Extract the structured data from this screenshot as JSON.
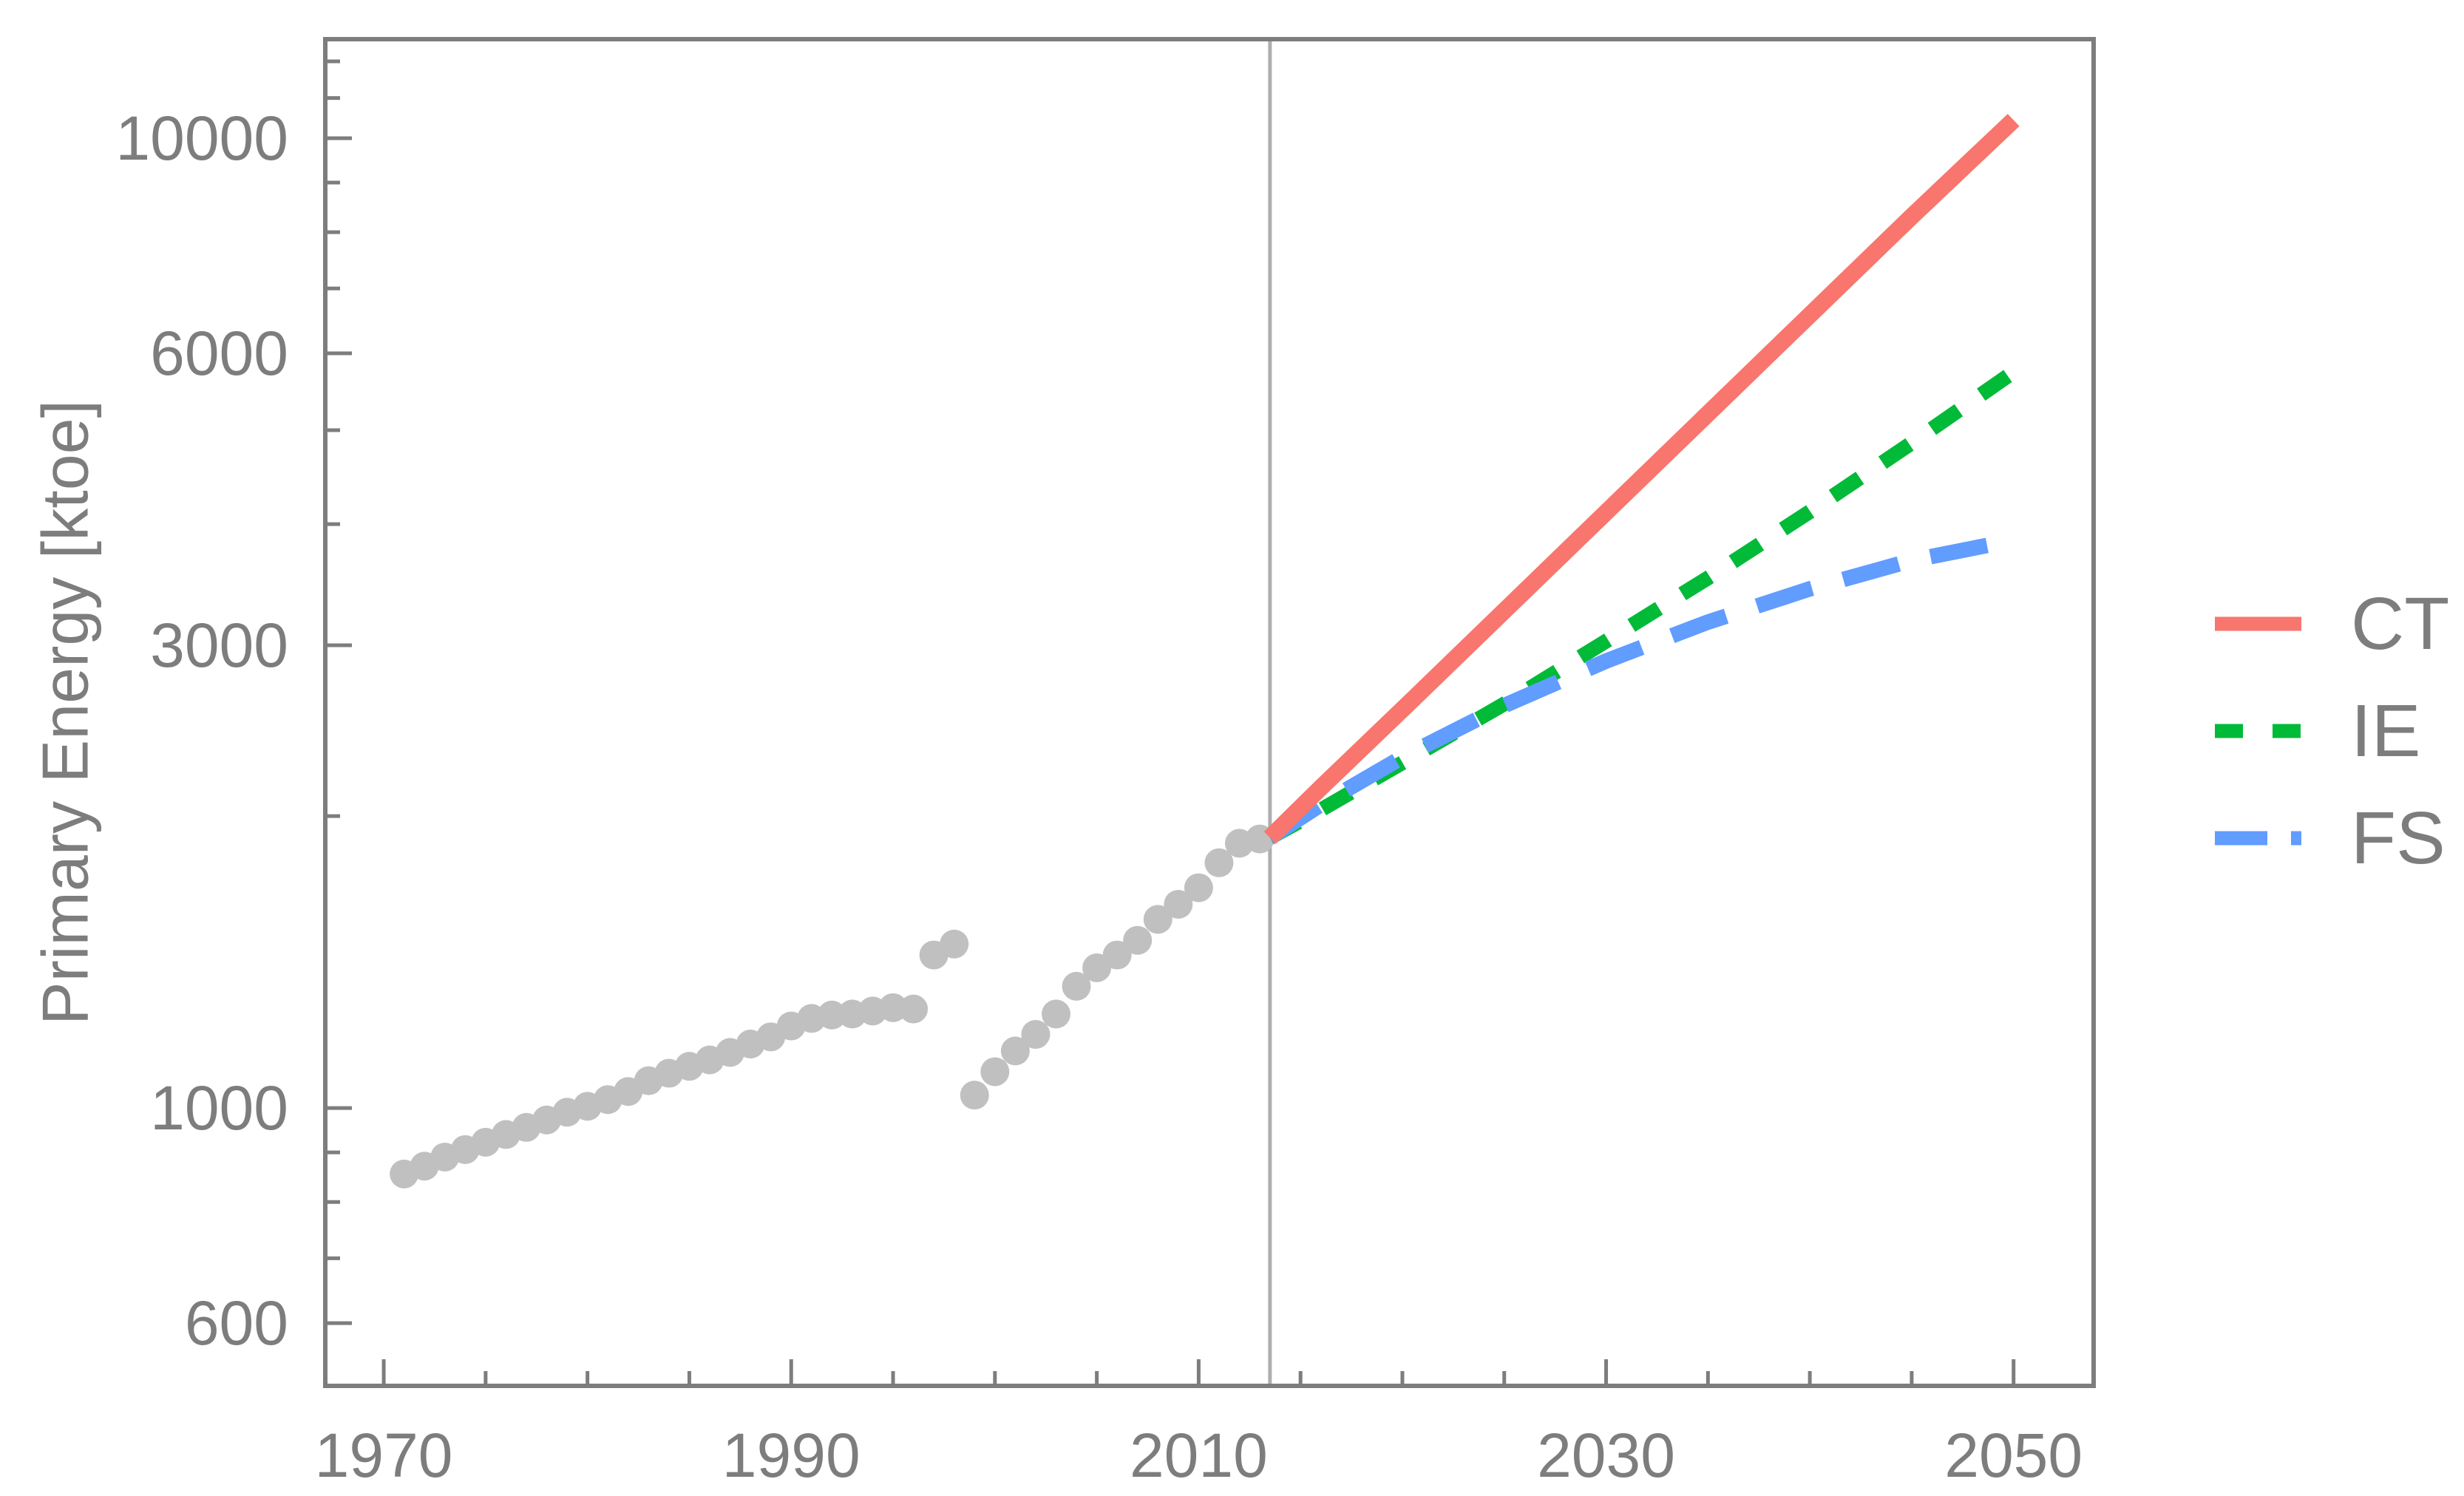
{
  "figure": {
    "background": "#ffffff",
    "frame_color": "#7d7d7d",
    "text_color": "#7d7d7d",
    "divider_color": "#aeaeae",
    "historical_color": "#c0c0c0"
  },
  "chart_data": {
    "type": "line",
    "title": "",
    "xlabel": "",
    "ylabel": "Primary Energy [ktoe]",
    "y_scale": "log",
    "grid": false,
    "xlim": [
      1967.13,
      2053.93
    ],
    "ylim": [
      517,
      12650
    ],
    "x_major_ticks": [
      1970,
      1990,
      2010,
      2030,
      2050
    ],
    "x_minor_ticks": [
      1975,
      1980,
      1985,
      1995,
      2000,
      2005,
      2015,
      2020,
      2025,
      2035,
      2040,
      2045
    ],
    "y_major_ticks": [
      600,
      1000,
      3000,
      6000,
      10000
    ],
    "y_minor_ticks": [
      700,
      800,
      900,
      2000,
      4000,
      5000,
      7000,
      8000,
      9000,
      11000,
      12000
    ],
    "divider_x": 2013.5,
    "historical": {
      "name": "historical observations",
      "marker": "circle",
      "years": [
        1971,
        1972,
        1973,
        1974,
        1975,
        1976,
        1977,
        1978,
        1979,
        1980,
        1981,
        1982,
        1983,
        1984,
        1985,
        1986,
        1987,
        1988,
        1989,
        1990,
        1991,
        1992,
        1993,
        1994,
        1995,
        1996,
        1997,
        1998,
        1999,
        2000,
        2001,
        2002,
        2003,
        2004,
        2005,
        2006,
        2007,
        2008,
        2009,
        2010,
        2011,
        2012,
        2013
      ],
      "values": [
        855,
        871,
        890,
        906,
        922,
        939,
        955,
        972,
        990,
        1004,
        1020,
        1040,
        1067,
        1086,
        1104,
        1121,
        1141,
        1164,
        1184,
        1215,
        1237,
        1247,
        1250,
        1259,
        1269,
        1265,
        1438,
        1476,
        1031,
        1090,
        1145,
        1191,
        1250,
        1335,
        1395,
        1438,
        1489,
        1565,
        1622,
        1687,
        1790,
        1875,
        1894
      ]
    },
    "series": [
      {
        "name": "IE",
        "style": "dotted",
        "color": "#00ba38",
        "x": [
          2013.5,
          2016,
          2020,
          2025,
          2030,
          2035,
          2040,
          2045,
          2050
        ],
        "y": [
          1900,
          2030,
          2270,
          2610,
          3030,
          3520,
          4120,
          4850,
          5740
        ]
      },
      {
        "name": "FS",
        "style": "dashed",
        "color": "#619cff",
        "x": [
          2013.5,
          2016,
          2020,
          2025,
          2030,
          2035,
          2040,
          2045,
          2050
        ],
        "y": [
          1900,
          2055,
          2300,
          2600,
          2890,
          3170,
          3430,
          3670,
          3850
        ]
      },
      {
        "name": "CT",
        "style": "solid",
        "color": "#f8766d",
        "x": [
          2013.5,
          2016,
          2020,
          2025,
          2030,
          2035,
          2040,
          2045,
          2050
        ],
        "y": [
          1900,
          2140,
          2576,
          3255,
          4114,
          5199,
          6571,
          8304,
          10440
        ]
      }
    ],
    "legend": {
      "position": "right",
      "entries": [
        {
          "label": "CT",
          "style": "solid",
          "color": "#f8766d"
        },
        {
          "label": "IE",
          "style": "dotted",
          "color": "#00ba38"
        },
        {
          "label": "FS",
          "style": "dashed",
          "color": "#619cff"
        }
      ]
    }
  }
}
